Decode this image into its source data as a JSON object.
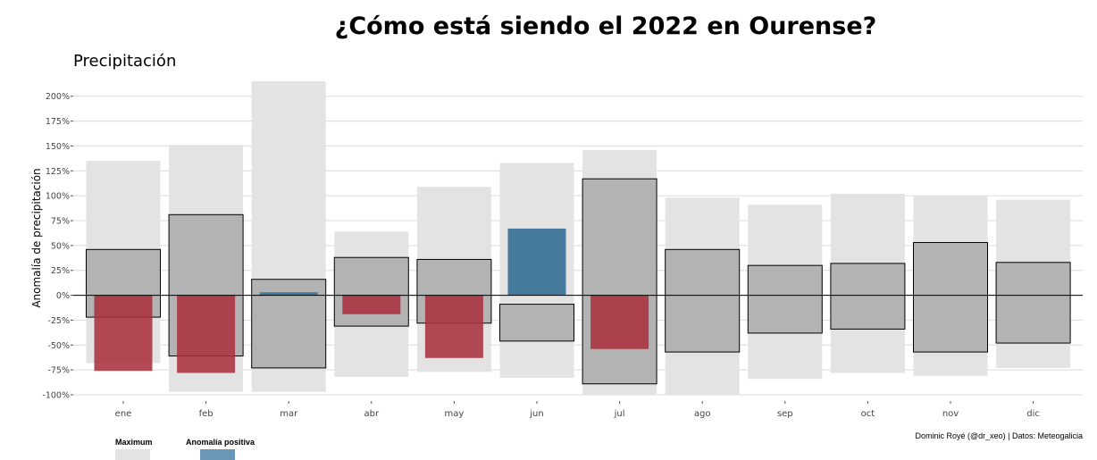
{
  "title": "¿Cómo está siendo el 2022 en Ourense?",
  "subtitle": "Precipitación",
  "caption": "Dominic Royé (@dr_xeo) | Datos: Meteogalicia",
  "legend": [
    {
      "label": "Maximum",
      "color": "#e3e3e3"
    },
    {
      "label": "Anomalía positiva",
      "color": "#6a97b8"
    }
  ],
  "colors": {
    "range": "#e3e3e3",
    "normal": "#b3b3b3",
    "positive": "#457a9c",
    "negative": "#a8313f",
    "grid": "#dcdcdc"
  },
  "chart_data": {
    "type": "bar",
    "title": "¿Cómo está siendo el 2022 en Ourense?",
    "subtitle": "Precipitación",
    "xlabel": "",
    "ylabel": "Anomalía de precipitación",
    "ylim": [
      -100,
      215
    ],
    "yticks": [
      -100,
      -75,
      -50,
      -25,
      0,
      25,
      50,
      75,
      100,
      125,
      150,
      175,
      200
    ],
    "ytick_labels": [
      "-100%",
      "-75%",
      "-50%",
      "-25%",
      "0%",
      "25%",
      "50%",
      "75%",
      "100%",
      "125%",
      "150%",
      "175%",
      "200%"
    ],
    "categories": [
      "ene",
      "feb",
      "mar",
      "abr",
      "may",
      "jun",
      "jul",
      "ago",
      "sep",
      "oct",
      "nov",
      "dic"
    ],
    "series": [
      {
        "name": "Maximum",
        "role": "range",
        "min": [
          -68,
          -97,
          -97,
          -82,
          -77,
          -83,
          -100,
          -100,
          -84,
          -78,
          -81,
          -73
        ],
        "max": [
          135,
          151,
          215,
          64,
          109,
          133,
          146,
          98,
          91,
          102,
          100,
          96
        ]
      },
      {
        "role": "normal",
        "min": [
          -22,
          -61,
          -73,
          -31,
          -28,
          -46,
          -89,
          -57,
          -38,
          -34,
          -57,
          -48
        ],
        "max": [
          46,
          81,
          16,
          38,
          36,
          -9,
          117,
          46,
          30,
          32,
          53,
          33
        ]
      },
      {
        "role": "anomaly",
        "values": [
          -76,
          -78,
          3,
          -19,
          -63,
          67,
          -54,
          null,
          null,
          null,
          null,
          null
        ]
      }
    ],
    "grid": true,
    "zero_line": true,
    "legend_position": "bottom-left"
  }
}
